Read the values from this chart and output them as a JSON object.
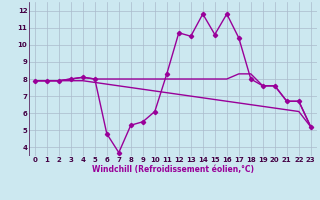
{
  "xlabel": "Windchill (Refroidissement éolien,°C)",
  "background_color": "#cce8f0",
  "grid_color": "#aabbcc",
  "line_color": "#990099",
  "xlim": [
    -0.5,
    23.5
  ],
  "ylim": [
    3.5,
    12.5
  ],
  "xticks": [
    0,
    1,
    2,
    3,
    4,
    5,
    6,
    7,
    8,
    9,
    10,
    11,
    12,
    13,
    14,
    15,
    16,
    17,
    18,
    19,
    20,
    21,
    22,
    23
  ],
  "yticks": [
    4,
    5,
    6,
    7,
    8,
    9,
    10,
    11,
    12
  ],
  "series": [
    {
      "x": [
        0,
        1,
        2,
        3,
        4,
        5,
        6,
        7,
        8,
        9,
        10,
        11,
        12,
        13,
        14,
        15,
        16,
        17,
        18,
        19,
        20,
        21,
        22,
        23
      ],
      "y": [
        7.9,
        7.9,
        7.9,
        8.0,
        8.1,
        8.0,
        8.0,
        8.0,
        8.0,
        8.0,
        8.0,
        8.0,
        8.0,
        8.0,
        8.0,
        8.0,
        8.0,
        8.3,
        8.3,
        7.6,
        7.6,
        6.7,
        6.7,
        5.2
      ],
      "marker": false,
      "lw": 1.0
    },
    {
      "x": [
        0,
        1,
        2,
        3,
        4,
        5,
        6,
        7,
        8,
        9,
        10,
        11,
        12,
        13,
        14,
        15,
        16,
        17,
        18,
        19,
        20,
        21,
        22,
        23
      ],
      "y": [
        7.9,
        7.9,
        7.9,
        7.9,
        7.9,
        7.8,
        7.7,
        7.6,
        7.5,
        7.4,
        7.3,
        7.2,
        7.1,
        7.0,
        6.9,
        6.8,
        6.7,
        6.6,
        6.5,
        6.4,
        6.3,
        6.2,
        6.1,
        5.2
      ],
      "marker": false,
      "lw": 1.0
    },
    {
      "x": [
        0,
        1,
        2,
        3,
        4,
        5,
        6,
        7,
        8,
        9,
        10,
        11,
        12,
        13,
        14,
        15,
        16,
        17,
        18,
        19,
        20,
        21,
        22,
        23
      ],
      "y": [
        7.9,
        7.9,
        7.9,
        8.0,
        8.1,
        8.0,
        4.8,
        3.7,
        5.3,
        5.5,
        6.1,
        8.3,
        10.7,
        10.5,
        11.8,
        10.6,
        11.8,
        10.4,
        8.0,
        7.6,
        7.6,
        6.7,
        6.7,
        5.2
      ],
      "marker": true,
      "lw": 1.0
    }
  ]
}
